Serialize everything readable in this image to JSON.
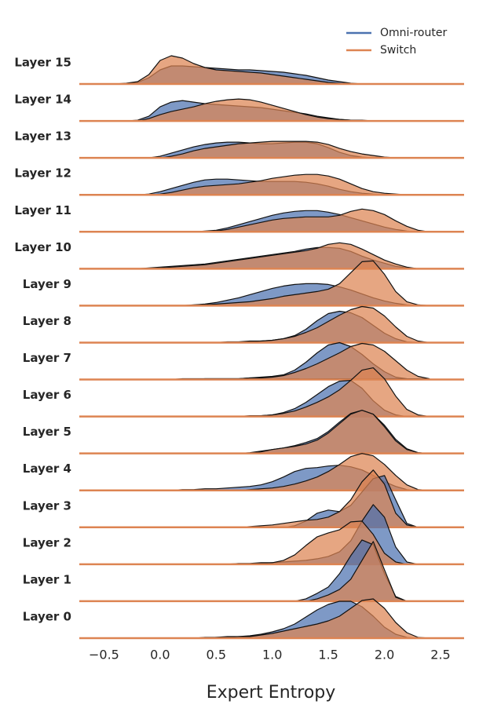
{
  "chart_data": {
    "type": "ridgeline",
    "xlabel": "Expert Entropy",
    "xlim": [
      -0.72,
      2.71
    ],
    "xticks": [
      {
        "value": -0.5,
        "label": "−0.5"
      },
      {
        "value": 0,
        "label": "0.0"
      },
      {
        "value": 0.5,
        "label": "0.5"
      },
      {
        "value": 1,
        "label": "1.0"
      },
      {
        "value": 1.5,
        "label": "1.5"
      },
      {
        "value": 2,
        "label": "2.0"
      },
      {
        "value": 2.5,
        "label": "2.5"
      }
    ],
    "legend": "upper right",
    "categories": [
      "Layer 15",
      "Layer 14",
      "Layer 13",
      "Layer 12",
      "Layer 11",
      "Layer 10",
      "Layer 9",
      "Layer 8",
      "Layer 7",
      "Layer 6",
      "Layer 5",
      "Layer 4",
      "Layer 3",
      "Layer 2",
      "Layer 1",
      "Layer 0"
    ],
    "x": [
      -0.4,
      -0.3,
      -0.2,
      -0.1,
      0,
      0.1,
      0.2,
      0.3,
      0.4,
      0.5,
      0.6,
      0.7,
      0.8,
      0.9,
      1,
      1.1,
      1.2,
      1.3,
      1.4,
      1.5,
      1.6,
      1.7,
      1.8,
      1.9,
      2,
      2.1,
      2.2,
      2.3,
      2.4
    ],
    "series": [
      {
        "name": "Omni-router",
        "color": "#4c72b0",
        "values": [
          [
            0,
            0,
            2,
            8,
            18,
            23,
            23,
            22,
            21,
            20,
            19,
            18,
            18,
            17,
            16,
            15,
            13,
            11,
            8,
            5,
            3,
            1,
            0,
            0,
            0,
            0,
            0,
            0,
            0
          ],
          [
            0,
            0,
            1,
            6,
            18,
            24,
            26,
            24,
            22,
            21,
            20,
            19,
            18,
            17,
            15,
            13,
            11,
            9,
            6,
            4,
            2,
            1,
            0,
            0,
            0,
            0,
            0,
            0,
            0
          ],
          [
            0,
            0,
            0,
            0,
            2,
            6,
            10,
            14,
            17,
            19,
            20,
            20,
            19,
            18,
            18,
            19,
            20,
            20,
            18,
            13,
            7,
            3,
            1,
            0,
            0,
            0,
            0,
            0,
            0
          ],
          [
            0,
            0,
            0,
            1,
            4,
            8,
            12,
            16,
            19,
            20,
            20,
            19,
            18,
            17,
            17,
            17,
            17,
            16,
            14,
            11,
            7,
            4,
            2,
            1,
            0,
            0,
            0,
            0,
            0
          ],
          [
            0,
            0,
            0,
            0,
            0,
            0,
            0,
            0,
            1,
            2,
            5,
            9,
            13,
            17,
            21,
            24,
            26,
            27,
            27,
            25,
            22,
            18,
            14,
            10,
            6,
            3,
            1,
            0,
            0
          ],
          [
            0,
            0,
            0,
            1,
            2,
            3,
            4,
            5,
            6,
            8,
            10,
            12,
            14,
            16,
            18,
            20,
            22,
            25,
            27,
            27,
            26,
            22,
            16,
            11,
            7,
            3,
            1,
            0,
            0
          ],
          [
            0,
            0,
            0,
            0,
            0,
            0,
            0,
            1,
            2,
            4,
            7,
            10,
            14,
            18,
            22,
            25,
            27,
            28,
            28,
            27,
            24,
            20,
            15,
            10,
            6,
            3,
            1,
            0,
            0
          ],
          [
            0,
            0,
            0,
            0,
            0,
            0,
            0,
            0,
            0,
            0,
            1,
            1,
            2,
            2,
            3,
            5,
            9,
            17,
            28,
            37,
            40,
            38,
            32,
            22,
            12,
            5,
            1,
            0,
            0
          ],
          [
            0,
            0,
            0,
            0,
            0,
            0,
            1,
            1,
            1,
            1,
            1,
            1,
            2,
            3,
            4,
            6,
            12,
            22,
            34,
            44,
            47,
            42,
            32,
            20,
            10,
            3,
            1,
            0,
            0
          ],
          [
            0,
            0,
            0,
            0,
            0,
            0,
            0,
            0,
            0,
            0,
            0,
            0,
            1,
            1,
            2,
            5,
            10,
            18,
            28,
            38,
            45,
            46,
            36,
            20,
            8,
            2,
            0,
            0,
            0
          ],
          [
            0,
            0,
            0,
            0,
            0,
            0,
            0,
            0,
            0,
            0,
            0,
            0,
            1,
            3,
            5,
            7,
            10,
            14,
            19,
            28,
            40,
            51,
            55,
            50,
            36,
            18,
            6,
            1,
            0
          ],
          [
            0,
            0,
            0,
            0,
            0,
            0,
            1,
            1,
            2,
            2,
            3,
            4,
            5,
            7,
            11,
            17,
            24,
            28,
            29,
            31,
            32,
            30,
            26,
            19,
            11,
            5,
            1,
            0,
            0
          ],
          [
            0,
            0,
            0,
            0,
            0,
            0,
            0,
            0,
            0,
            0,
            0,
            0,
            0,
            0,
            0,
            0,
            2,
            8,
            18,
            22,
            20,
            28,
            45,
            62,
            66,
            35,
            5,
            0,
            0
          ],
          [
            0,
            0,
            0,
            0,
            0,
            0,
            0,
            0,
            0,
            0,
            0,
            1,
            1,
            2,
            2,
            3,
            4,
            5,
            7,
            10,
            16,
            30,
            55,
            76,
            60,
            22,
            3,
            0,
            0
          ],
          [
            0,
            0,
            0,
            0,
            0,
            0,
            0,
            0,
            0,
            0,
            0,
            0,
            0,
            0,
            0,
            0,
            0,
            3,
            10,
            18,
            35,
            58,
            78,
            72,
            35,
            6,
            0,
            0,
            0
          ],
          [
            0,
            0,
            0,
            0,
            0,
            0,
            0,
            0,
            1,
            1,
            2,
            2,
            3,
            5,
            8,
            12,
            18,
            27,
            36,
            43,
            47,
            47,
            40,
            28,
            14,
            5,
            1,
            0,
            0
          ]
        ]
      },
      {
        "name": "Switch",
        "color": "#dd8452",
        "values": [
          [
            0,
            1,
            3,
            12,
            30,
            36,
            33,
            26,
            21,
            18,
            17,
            16,
            15,
            14,
            12,
            10,
            8,
            6,
            4,
            2,
            1,
            0,
            0,
            0,
            0,
            0,
            0,
            0,
            0
          ],
          [
            0,
            0,
            0,
            3,
            8,
            12,
            15,
            18,
            22,
            25,
            27,
            28,
            27,
            24,
            20,
            16,
            12,
            8,
            5,
            3,
            2,
            1,
            1,
            0,
            0,
            0,
            0,
            0,
            0
          ],
          [
            0,
            0,
            0,
            0,
            0,
            2,
            5,
            9,
            12,
            14,
            16,
            18,
            19,
            20,
            21,
            21,
            21,
            21,
            20,
            17,
            12,
            8,
            5,
            3,
            1,
            0,
            0,
            0,
            0
          ],
          [
            0,
            0,
            0,
            0,
            1,
            3,
            6,
            9,
            11,
            12,
            13,
            14,
            16,
            18,
            21,
            23,
            25,
            26,
            26,
            24,
            20,
            14,
            8,
            4,
            2,
            1,
            0,
            0,
            0
          ],
          [
            0,
            0,
            0,
            0,
            0,
            0,
            0,
            0,
            0,
            1,
            3,
            6,
            9,
            12,
            15,
            17,
            18,
            19,
            19,
            19,
            21,
            26,
            29,
            27,
            22,
            14,
            7,
            2,
            0
          ],
          [
            0,
            0,
            0,
            0,
            1,
            2,
            3,
            4,
            5,
            7,
            9,
            11,
            13,
            15,
            17,
            19,
            21,
            23,
            26,
            31,
            33,
            31,
            25,
            18,
            11,
            6,
            2,
            0,
            0
          ],
          [
            0,
            0,
            0,
            0,
            0,
            0,
            0,
            0,
            1,
            2,
            3,
            4,
            5,
            7,
            9,
            12,
            14,
            16,
            18,
            21,
            28,
            42,
            56,
            57,
            40,
            18,
            5,
            1,
            0
          ],
          [
            0,
            0,
            0,
            0,
            0,
            0,
            0,
            0,
            0,
            0,
            0,
            0,
            1,
            2,
            3,
            5,
            8,
            13,
            19,
            27,
            35,
            42,
            46,
            44,
            34,
            20,
            8,
            2,
            0
          ],
          [
            0,
            0,
            0,
            0,
            0,
            0,
            0,
            0,
            1,
            1,
            1,
            1,
            2,
            2,
            3,
            5,
            9,
            14,
            20,
            27,
            34,
            42,
            46,
            44,
            36,
            24,
            12,
            4,
            1
          ],
          [
            0,
            0,
            0,
            0,
            0,
            0,
            0,
            0,
            0,
            0,
            0,
            0,
            0,
            1,
            2,
            4,
            7,
            12,
            18,
            25,
            34,
            46,
            59,
            62,
            48,
            26,
            9,
            2,
            0
          ],
          [
            0,
            0,
            0,
            0,
            0,
            0,
            0,
            0,
            0,
            0,
            0,
            0,
            0,
            2,
            5,
            7,
            9,
            12,
            17,
            26,
            38,
            50,
            55,
            50,
            34,
            16,
            5,
            1,
            0
          ],
          [
            0,
            0,
            0,
            0,
            0,
            0,
            0,
            0,
            0,
            0,
            0,
            0,
            1,
            2,
            3,
            5,
            8,
            12,
            17,
            24,
            33,
            43,
            47,
            44,
            33,
            19,
            7,
            1,
            0
          ],
          [
            0,
            0,
            0,
            0,
            0,
            0,
            0,
            0,
            0,
            0,
            0,
            0,
            1,
            2,
            3,
            5,
            7,
            9,
            10,
            13,
            20,
            35,
            58,
            73,
            55,
            18,
            3,
            0,
            0
          ],
          [
            0,
            0,
            0,
            0,
            0,
            0,
            0,
            0,
            0,
            0,
            0,
            0,
            0,
            1,
            2,
            5,
            12,
            24,
            35,
            40,
            44,
            54,
            55,
            38,
            14,
            3,
            0,
            0,
            0
          ],
          [
            0,
            0,
            0,
            0,
            0,
            0,
            0,
            0,
            0,
            0,
            0,
            0,
            0,
            0,
            0,
            0,
            0,
            0,
            3,
            8,
            15,
            28,
            52,
            76,
            40,
            5,
            0,
            0,
            0
          ],
          [
            0,
            0,
            0,
            0,
            0,
            0,
            0,
            0,
            0,
            1,
            1,
            2,
            2,
            4,
            6,
            9,
            12,
            15,
            18,
            22,
            28,
            38,
            48,
            50,
            38,
            20,
            7,
            1,
            0
          ]
        ]
      }
    ]
  }
}
